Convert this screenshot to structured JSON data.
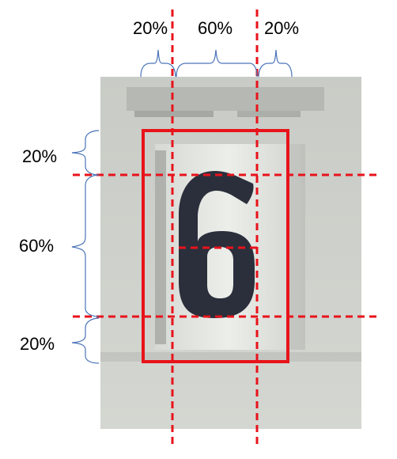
{
  "diagram": {
    "digit": "6",
    "horizontal_split": {
      "left_label": "20%",
      "center_label": "60%",
      "right_label": "20%"
    },
    "vertical_split": {
      "top_label": "20%",
      "middle_label": "60%",
      "bottom_label": "20%"
    }
  },
  "colors": {
    "guide_lines": "#e8131b",
    "bounding_box": "#e8131b",
    "brace": "#4a73b8",
    "photo_background": "#cfd1cc",
    "plate": "#e5e7e3",
    "digit": "#2b2f3c"
  }
}
